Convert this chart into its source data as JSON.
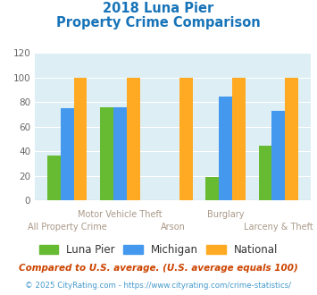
{
  "title_line1": "2018 Luna Pier",
  "title_line2": "Property Crime Comparison",
  "title_color": "#1874b8",
  "categories": [
    "All Property Crime",
    "Motor Vehicle Theft",
    "Arson",
    "Burglary",
    "Larceny & Theft"
  ],
  "luna_pier": [
    37,
    76,
    0,
    19,
    45
  ],
  "michigan": [
    75,
    76,
    0,
    85,
    73
  ],
  "national": [
    100,
    100,
    100,
    100,
    100
  ],
  "color_luna": "#66bb33",
  "color_michigan": "#4499ee",
  "color_national": "#ffaa22",
  "background_chart": "#ddeef5",
  "ylim": [
    0,
    120
  ],
  "yticks": [
    0,
    20,
    40,
    60,
    80,
    100,
    120
  ],
  "footnote1": "Compared to U.S. average. (U.S. average equals 100)",
  "footnote2": "© 2025 CityRating.com - https://www.cityrating.com/crime-statistics/",
  "footnote1_color": "#cc4400",
  "footnote2_color": "#4499cc",
  "bar_width": 0.25,
  "xlabel_color": "#aa9988",
  "ylabel_color": "#666666"
}
